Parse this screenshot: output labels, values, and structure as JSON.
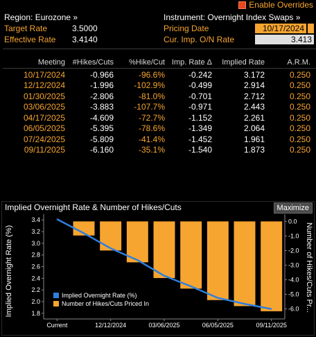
{
  "overrides": {
    "label": "Enable Overrides"
  },
  "header": {
    "region": "Region: Eurozone »",
    "instrument": "Instrument: Overnight Index Swaps »",
    "target_rate_label": "Target Rate",
    "target_rate_value": "3.5000",
    "effective_rate_label": "Effective Rate",
    "effective_rate_value": "3.4140",
    "pricing_date_label": "Pricing Date",
    "pricing_date_value": "10/17/2024",
    "cur_imp_label": "Cur. Imp. O/N Rate",
    "cur_imp_value": "3.413"
  },
  "table": {
    "columns": [
      "Meeting",
      "#Hikes/Cuts",
      "%Hike/Cut",
      "Imp. Rate Δ",
      "Implied Rate",
      "A.R.M."
    ],
    "rows": [
      [
        "10/17/2024",
        "-0.966",
        "-96.6%",
        "-0.242",
        "3.172",
        "0.250"
      ],
      [
        "12/12/2024",
        "-1.996",
        "-102.9%",
        "-0.499",
        "2.914",
        "0.250"
      ],
      [
        "01/30/2025",
        "-2.806",
        "-81.0%",
        "-0.701",
        "2.712",
        "0.250"
      ],
      [
        "03/06/2025",
        "-3.883",
        "-107.7%",
        "-0.971",
        "2.443",
        "0.250"
      ],
      [
        "04/17/2025",
        "-4.609",
        "-72.7%",
        "-1.152",
        "2.261",
        "0.250"
      ],
      [
        "06/05/2025",
        "-5.395",
        "-78.6%",
        "-1.349",
        "2.064",
        "0.250"
      ],
      [
        "07/24/2025",
        "-5.809",
        "-41.4%",
        "-1.452",
        "1.961",
        "0.250"
      ],
      [
        "09/11/2025",
        "-6.160",
        "-35.1%",
        "-1.540",
        "1.873",
        "0.250"
      ]
    ]
  },
  "chart": {
    "title": "Implied Overnight Rate & Number of Hikes/Cuts",
    "maximize_label": "Maximize",
    "left_axis_label": "Implied Overnight Rate (%)",
    "right_axis_label": "Number of Hikes/Cuts Pr...",
    "legend_line": "Implied Overnight Rate (%)",
    "legend_bar": "Number of Hikes/Cuts Priced In",
    "left_ticks": [
      "3.4",
      "3.2",
      "3.0",
      "2.8",
      "2.6",
      "2.4",
      "2.2",
      "2.0",
      "1.8"
    ],
    "right_ticks": [
      "0.0",
      "-1.0",
      "-2.0",
      "-3.0",
      "-4.0",
      "-5.0",
      "-6.0"
    ],
    "x_ticks": [
      "Current",
      "12/12/2024",
      "03/06/2025",
      "06/05/2025",
      "09/11/2025"
    ],
    "colors": {
      "bar": "#f7a531",
      "line": "#2f7fdc"
    }
  },
  "chart_data": {
    "type": "bar",
    "title": "Implied Overnight Rate & Number of Hikes/Cuts",
    "categories": [
      "Current",
      "10/17/2024",
      "12/12/2024",
      "01/30/2025",
      "03/06/2025",
      "04/17/2025",
      "06/05/2025",
      "07/24/2025",
      "09/11/2025"
    ],
    "series": [
      {
        "name": "Number of Hikes/Cuts Priced In",
        "type": "bar",
        "axis": "right",
        "values": [
          0,
          -0.966,
          -1.996,
          -2.806,
          -3.883,
          -4.609,
          -5.395,
          -5.809,
          -6.16
        ]
      },
      {
        "name": "Implied Overnight Rate (%)",
        "type": "line",
        "axis": "left",
        "values": [
          3.413,
          3.172,
          2.914,
          2.712,
          2.443,
          2.261,
          2.064,
          1.961,
          1.873
        ]
      }
    ],
    "ylabel": "Implied Overnight Rate (%)",
    "y2label": "Number of Hikes/Cuts Pr...",
    "ylim": [
      1.75,
      3.45
    ],
    "y2lim": [
      -6.5,
      0.3
    ]
  }
}
